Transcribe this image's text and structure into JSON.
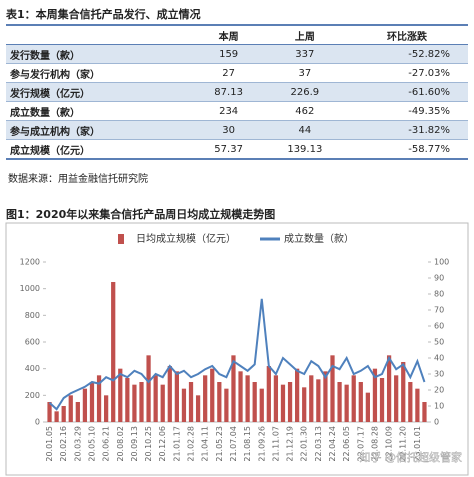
{
  "table": {
    "title": "表1：本周集合信托产品发行、成立情况",
    "header": [
      "本周",
      "上周",
      "环比涨跌"
    ],
    "rows": [
      [
        "发行数量（款）",
        "159",
        "337",
        "-52.82%"
      ],
      [
        "参与发行机构（家）",
        "27",
        "37",
        "-27.03%"
      ],
      [
        "发行规模（亿元）",
        "87.13",
        "226.9",
        "-61.60%"
      ],
      [
        "成立数量（款）",
        "234",
        "462",
        "-49.35%"
      ],
      [
        "参与成立机构（家）",
        "30",
        "44",
        "-31.82%"
      ],
      [
        "成立规模（亿元）",
        "57.37",
        "139.13",
        "-58.77%"
      ]
    ]
  },
  "source": "数据来源：用益金融信托研究院",
  "watermark": "知乎 @信托超级管家",
  "chart_data": {
    "type": "combo",
    "title": "图1：2020年以来集合信托产品周日均成立规模走势图",
    "categories": [
      "20.01.05",
      null,
      "20.02.16",
      null,
      "20.03.29",
      null,
      "20.05.10",
      null,
      "20.06.21",
      null,
      "20.08.02",
      null,
      "20.09.13",
      null,
      "20.10.25",
      null,
      "20.12.06",
      null,
      "21.01.17",
      null,
      "21.02.28",
      null,
      "21.04.11",
      null,
      "21.05.23",
      null,
      "21.07.04",
      null,
      "21.08.15",
      null,
      "21.09.26",
      null,
      "21.11.07",
      null,
      "21.12.19",
      null,
      "22.01.30",
      null,
      "22.03.13",
      null,
      "22.04.24",
      null,
      "22.06.05",
      null,
      "22.07.17",
      null,
      "22.08.28",
      null,
      "22.10.09",
      null,
      "22.11.20",
      null,
      "23.01.01",
      null
    ],
    "series": [
      {
        "name": "日均成立规模（亿元）",
        "type": "bar",
        "color": "#c0504d",
        "values": [
          150,
          80,
          120,
          200,
          150,
          250,
          300,
          350,
          200,
          1050,
          400,
          330,
          280,
          300,
          500,
          350,
          280,
          420,
          380,
          250,
          300,
          200,
          350,
          400,
          300,
          250,
          500,
          380,
          350,
          300,
          250,
          420,
          350,
          280,
          300,
          400,
          260,
          350,
          320,
          380,
          500,
          300,
          280,
          350,
          300,
          220,
          400,
          330,
          500,
          350,
          450,
          300,
          250,
          150
        ]
      },
      {
        "name": "成立数量（款）",
        "type": "line",
        "axis": "y2",
        "color": "#4f81bd",
        "values": [
          12,
          8,
          15,
          18,
          20,
          22,
          25,
          24,
          28,
          26,
          30,
          28,
          32,
          30,
          25,
          30,
          28,
          35,
          30,
          32,
          28,
          30,
          33,
          35,
          30,
          28,
          38,
          35,
          32,
          36,
          77,
          35,
          30,
          40,
          36,
          32,
          30,
          38,
          35,
          28,
          35,
          33,
          40,
          30,
          32,
          35,
          28,
          30,
          40,
          33,
          36,
          28,
          38,
          25
        ]
      }
    ],
    "ylim": [
      0,
      1200
    ],
    "yticks": [
      0,
      200,
      400,
      600,
      800,
      1000,
      1200
    ],
    "y2lim": [
      0,
      100
    ],
    "y2ticks": [
      0,
      10,
      20,
      30,
      40,
      50,
      60,
      70,
      80,
      90,
      100
    ]
  }
}
